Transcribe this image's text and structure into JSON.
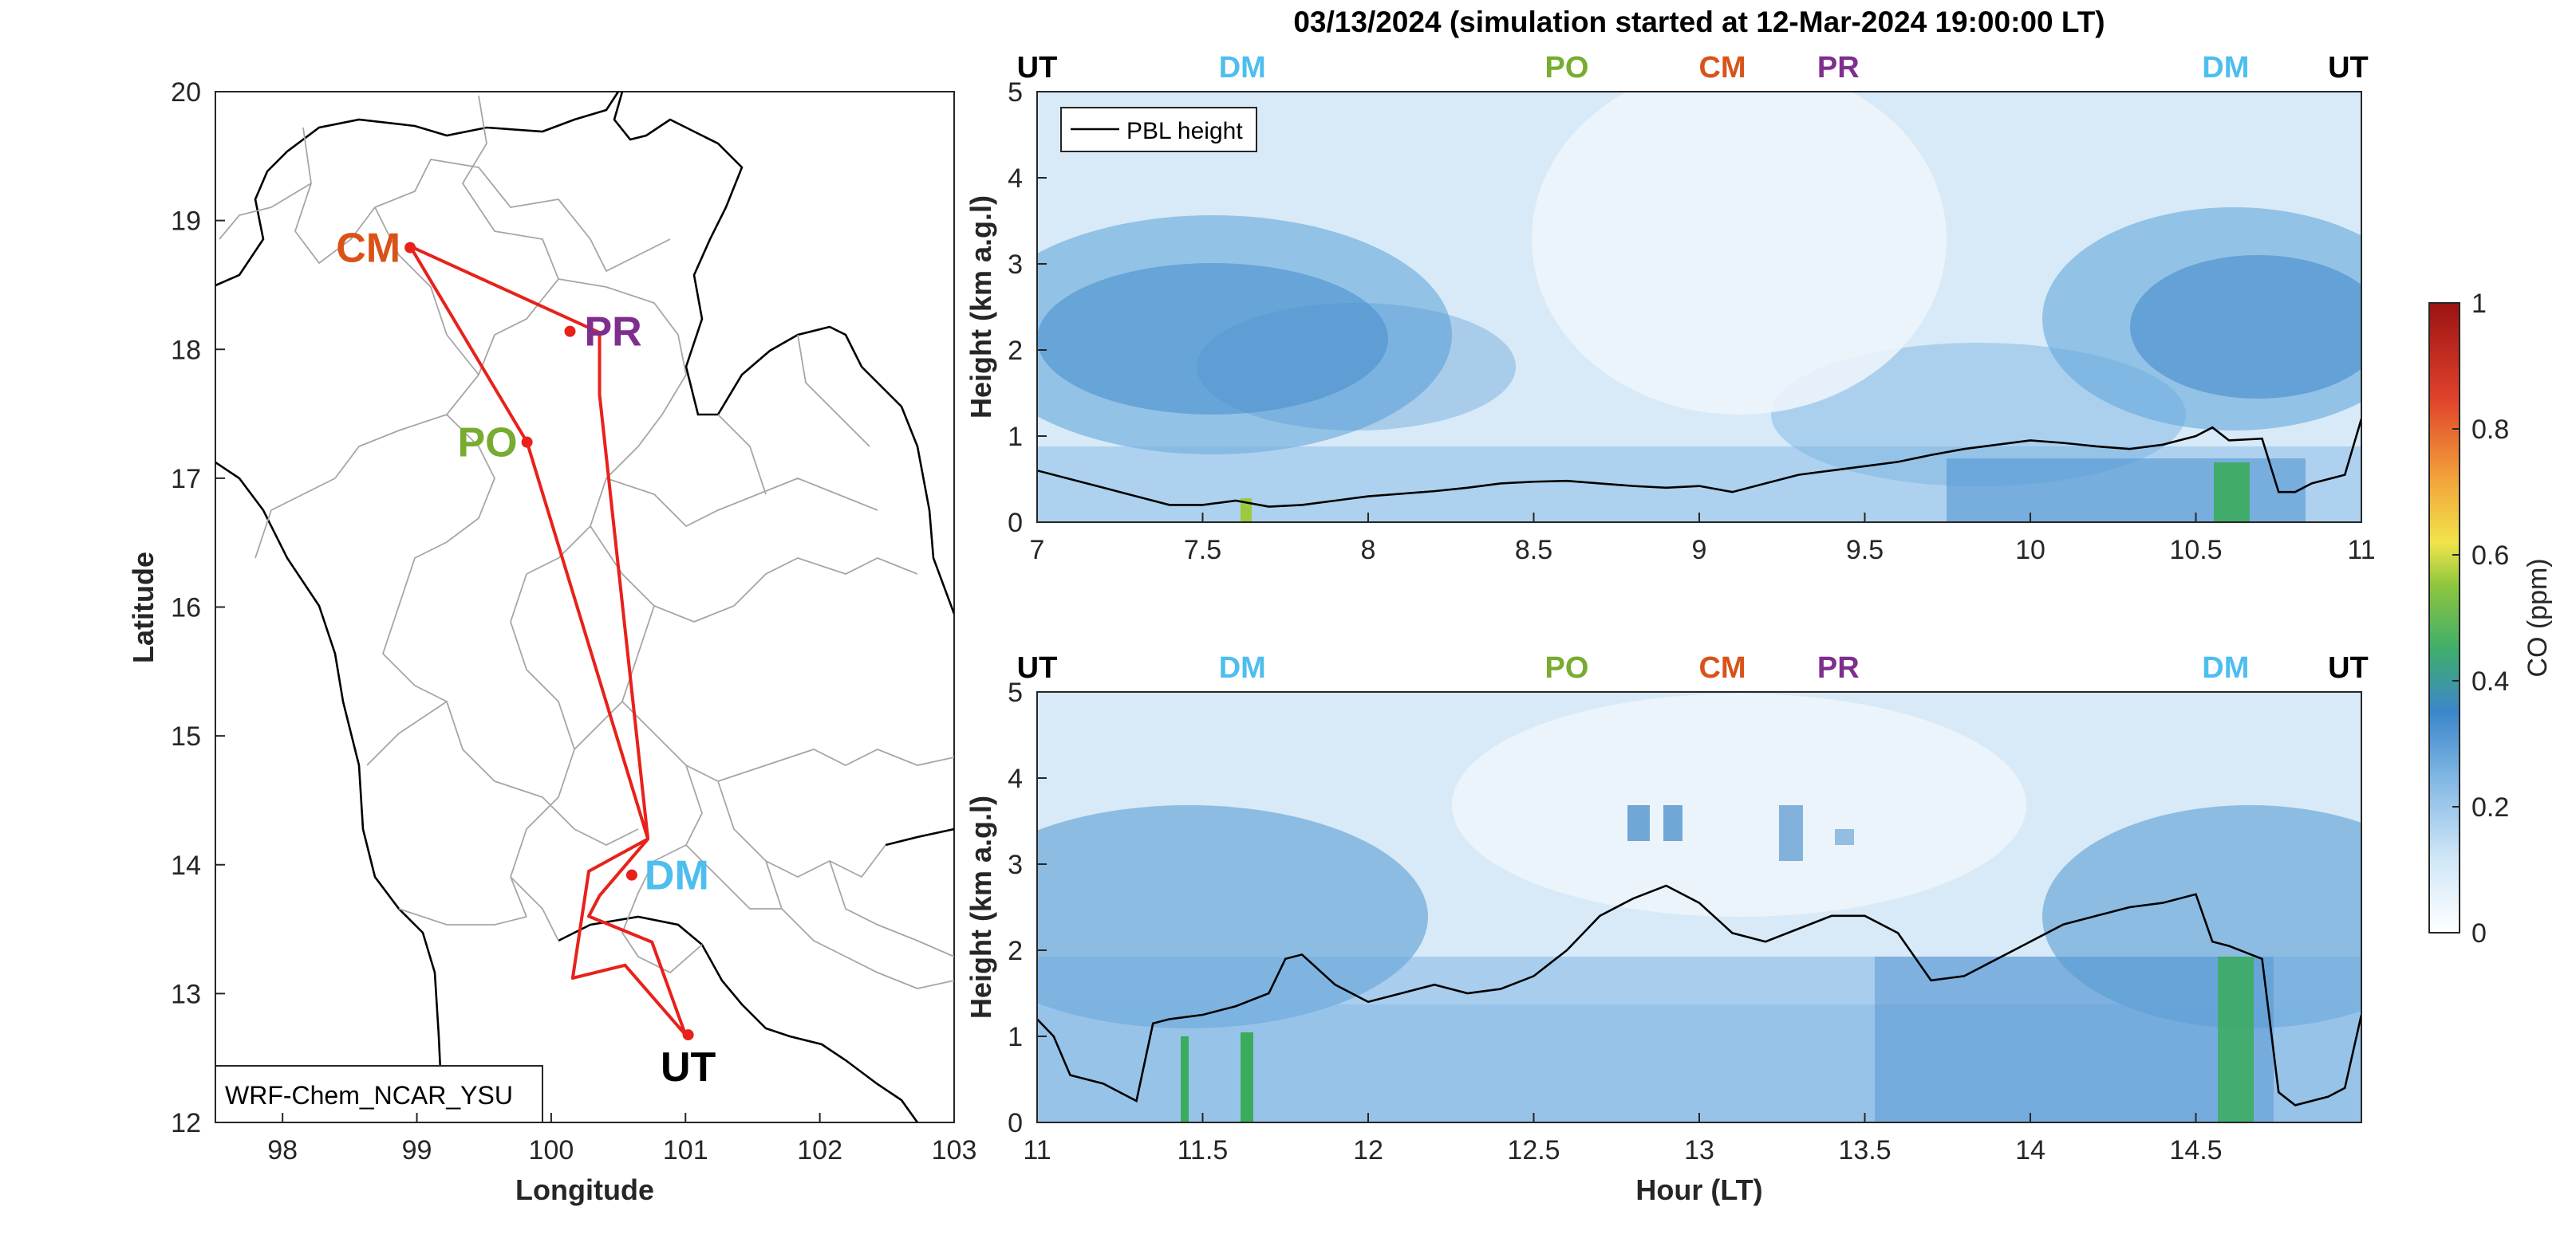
{
  "title": "03/13/2024 (simulation started at 12-Mar-2024 19:00:00 LT)",
  "chart_data": [
    {
      "type": "map",
      "xlabel": "Longitude",
      "ylabel": "Latitude",
      "xlim": [
        97.5,
        103
      ],
      "ylim": [
        12,
        20
      ],
      "xticks": [
        "98",
        "99",
        "100",
        "101",
        "102",
        "103"
      ],
      "yticks": [
        "12",
        "13",
        "14",
        "15",
        "16",
        "17",
        "18",
        "19",
        "20"
      ],
      "model_label": "WRF-Chem_NCAR_YSU",
      "route_color": "#e8211b",
      "route": [
        [
          101.0,
          12.68
        ],
        [
          100.55,
          13.22
        ],
        [
          100.16,
          13.12
        ],
        [
          100.28,
          13.95
        ],
        [
          100.72,
          14.2
        ],
        [
          100.36,
          17.65
        ],
        [
          100.36,
          18.13
        ],
        [
          98.95,
          18.8
        ],
        [
          99.82,
          17.28
        ],
        [
          100.72,
          14.2
        ],
        [
          100.36,
          13.76
        ],
        [
          100.28,
          13.6
        ],
        [
          100.75,
          13.4
        ],
        [
          101.0,
          12.68
        ]
      ],
      "sites": [
        {
          "name": "CM",
          "lon": 98.95,
          "lat": 18.79,
          "color": "#d95319"
        },
        {
          "name": "PR",
          "lon": 100.14,
          "lat": 18.14,
          "color": "#7e2f8e"
        },
        {
          "name": "PO",
          "lon": 99.82,
          "lat": 17.28,
          "color": "#77ac30"
        },
        {
          "name": "DM",
          "lon": 100.6,
          "lat": 13.92,
          "color": "#4dbeee"
        },
        {
          "name": "UT",
          "lon": 101.02,
          "lat": 12.68,
          "color": "#000000"
        }
      ]
    },
    {
      "type": "heatmap",
      "xlabel": "",
      "ylabel": "Height (km a.g.l)",
      "xlim": [
        7,
        11
      ],
      "ylim": [
        0,
        5
      ],
      "xticks": [
        "7",
        "7.5",
        "8",
        "8.5",
        "9",
        "9.5",
        "10",
        "10.5",
        "11"
      ],
      "yticks": [
        "0",
        "1",
        "2",
        "3",
        "4",
        "5"
      ],
      "legend": "PBL height",
      "site_markers": [
        {
          "name": "UT",
          "x": 7.0,
          "color": "#000000"
        },
        {
          "name": "DM",
          "x": 7.62,
          "color": "#4dbeee"
        },
        {
          "name": "PO",
          "x": 8.6,
          "color": "#77ac30"
        },
        {
          "name": "CM",
          "x": 9.07,
          "color": "#d95319"
        },
        {
          "name": "PR",
          "x": 9.42,
          "color": "#7e2f8e"
        },
        {
          "name": "DM",
          "x": 10.59,
          "color": "#4dbeee"
        },
        {
          "name": "UT",
          "x": 10.96,
          "color": "#000000"
        }
      ],
      "pbl_height": {
        "x": [
          7.0,
          7.1,
          7.2,
          7.3,
          7.4,
          7.5,
          7.6,
          7.7,
          7.8,
          7.9,
          8.0,
          8.1,
          8.2,
          8.3,
          8.4,
          8.5,
          8.6,
          8.7,
          8.8,
          8.9,
          9.0,
          9.1,
          9.2,
          9.3,
          9.4,
          9.5,
          9.6,
          9.7,
          9.8,
          9.9,
          10.0,
          10.1,
          10.2,
          10.3,
          10.4,
          10.5,
          10.55,
          10.6,
          10.7,
          10.75,
          10.8,
          10.85,
          10.9,
          10.95,
          11.0
        ],
        "y": [
          0.6,
          0.5,
          0.4,
          0.3,
          0.2,
          0.2,
          0.25,
          0.18,
          0.2,
          0.25,
          0.3,
          0.33,
          0.36,
          0.4,
          0.45,
          0.47,
          0.48,
          0.45,
          0.42,
          0.4,
          0.42,
          0.35,
          0.45,
          0.55,
          0.6,
          0.65,
          0.7,
          0.78,
          0.85,
          0.9,
          0.95,
          0.92,
          0.88,
          0.85,
          0.9,
          1.0,
          1.1,
          0.95,
          0.97,
          0.35,
          0.35,
          0.45,
          0.5,
          0.55,
          1.2
        ]
      },
      "colorbar": {
        "label": "CO (ppm)",
        "range": [
          0,
          1
        ],
        "ticks": [
          "0",
          "0.2",
          "0.4",
          "0.6",
          "0.8",
          "1"
        ]
      }
    },
    {
      "type": "heatmap",
      "xlabel": "Hour (LT)",
      "ylabel": "Height (km a.g.l)",
      "xlim": [
        11,
        15
      ],
      "ylim": [
        0,
        5
      ],
      "xticks": [
        "11",
        "11.5",
        "12",
        "12.5",
        "13",
        "13.5",
        "14",
        "14.5"
      ],
      "yticks": [
        "0",
        "1",
        "2",
        "3",
        "4",
        "5"
      ],
      "site_markers": [
        {
          "name": "UT",
          "x": 11.0,
          "color": "#000000"
        },
        {
          "name": "DM",
          "x": 11.62,
          "color": "#4dbeee"
        },
        {
          "name": "PO",
          "x": 12.6,
          "color": "#77ac30"
        },
        {
          "name": "CM",
          "x": 13.07,
          "color": "#d95319"
        },
        {
          "name": "PR",
          "x": 13.42,
          "color": "#7e2f8e"
        },
        {
          "name": "DM",
          "x": 14.59,
          "color": "#4dbeee"
        },
        {
          "name": "UT",
          "x": 14.96,
          "color": "#000000"
        }
      ],
      "pbl_height": {
        "x": [
          11.0,
          11.05,
          11.1,
          11.2,
          11.3,
          11.35,
          11.4,
          11.5,
          11.6,
          11.7,
          11.75,
          11.8,
          11.9,
          12.0,
          12.1,
          12.2,
          12.3,
          12.4,
          12.5,
          12.6,
          12.7,
          12.8,
          12.9,
          13.0,
          13.1,
          13.2,
          13.3,
          13.4,
          13.5,
          13.6,
          13.7,
          13.8,
          13.9,
          14.0,
          14.1,
          14.2,
          14.3,
          14.4,
          14.5,
          14.55,
          14.6,
          14.7,
          14.75,
          14.8,
          14.9,
          14.95,
          15.0
        ],
        "y": [
          1.2,
          1.0,
          0.55,
          0.45,
          0.25,
          1.15,
          1.2,
          1.25,
          1.35,
          1.5,
          1.9,
          1.95,
          1.6,
          1.4,
          1.5,
          1.6,
          1.5,
          1.55,
          1.7,
          2.0,
          2.4,
          2.6,
          2.75,
          2.55,
          2.2,
          2.1,
          2.25,
          2.4,
          2.4,
          2.2,
          1.65,
          1.7,
          1.9,
          2.1,
          2.3,
          2.4,
          2.5,
          2.55,
          2.65,
          2.1,
          2.05,
          1.9,
          0.35,
          0.2,
          0.3,
          0.4,
          1.25
        ]
      }
    }
  ]
}
